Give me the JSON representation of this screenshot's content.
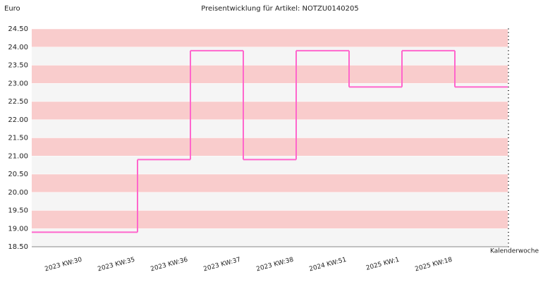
{
  "chart_data": {
    "type": "step-line",
    "title": "Preisentwicklung für Artikel: NOTZU0140205",
    "y_label": "Euro",
    "x_label": "Kalenderwoche",
    "categories": [
      "2023 KW:30",
      "2023 KW:35",
      "2023 KW:36",
      "2023 KW:37",
      "2023 KW:38",
      "2024 KW:51",
      "2025 KW:1",
      "2025 KW:18"
    ],
    "series": [
      {
        "color": "#ff66cc",
        "values": [
          18.9,
          20.9,
          23.9,
          20.9,
          23.9,
          22.9,
          23.9,
          22.9
        ]
      }
    ],
    "ylim": [
      18.5,
      24.5
    ],
    "yticks": [
      {
        "value": 18.5,
        "label": "18.50"
      },
      {
        "value": 19,
        "label": "19.00"
      },
      {
        "value": 19.5,
        "label": "19.50"
      },
      {
        "value": 20,
        "label": "20.00"
      },
      {
        "value": 20.5,
        "label": "20.50"
      },
      {
        "value": 21,
        "label": "21.00"
      },
      {
        "value": 21.5,
        "label": "21.50"
      },
      {
        "value": 22,
        "label": "22.00"
      },
      {
        "value": 22.5,
        "label": "22.50"
      },
      {
        "value": 23,
        "label": "23.00"
      },
      {
        "value": 23.5,
        "label": "23.50"
      },
      {
        "value": 24,
        "label": "24.00"
      },
      {
        "value": 24.5,
        "label": "24.50"
      }
    ],
    "band_colors": [
      "#f5f5f5",
      "#f9cccc"
    ]
  }
}
